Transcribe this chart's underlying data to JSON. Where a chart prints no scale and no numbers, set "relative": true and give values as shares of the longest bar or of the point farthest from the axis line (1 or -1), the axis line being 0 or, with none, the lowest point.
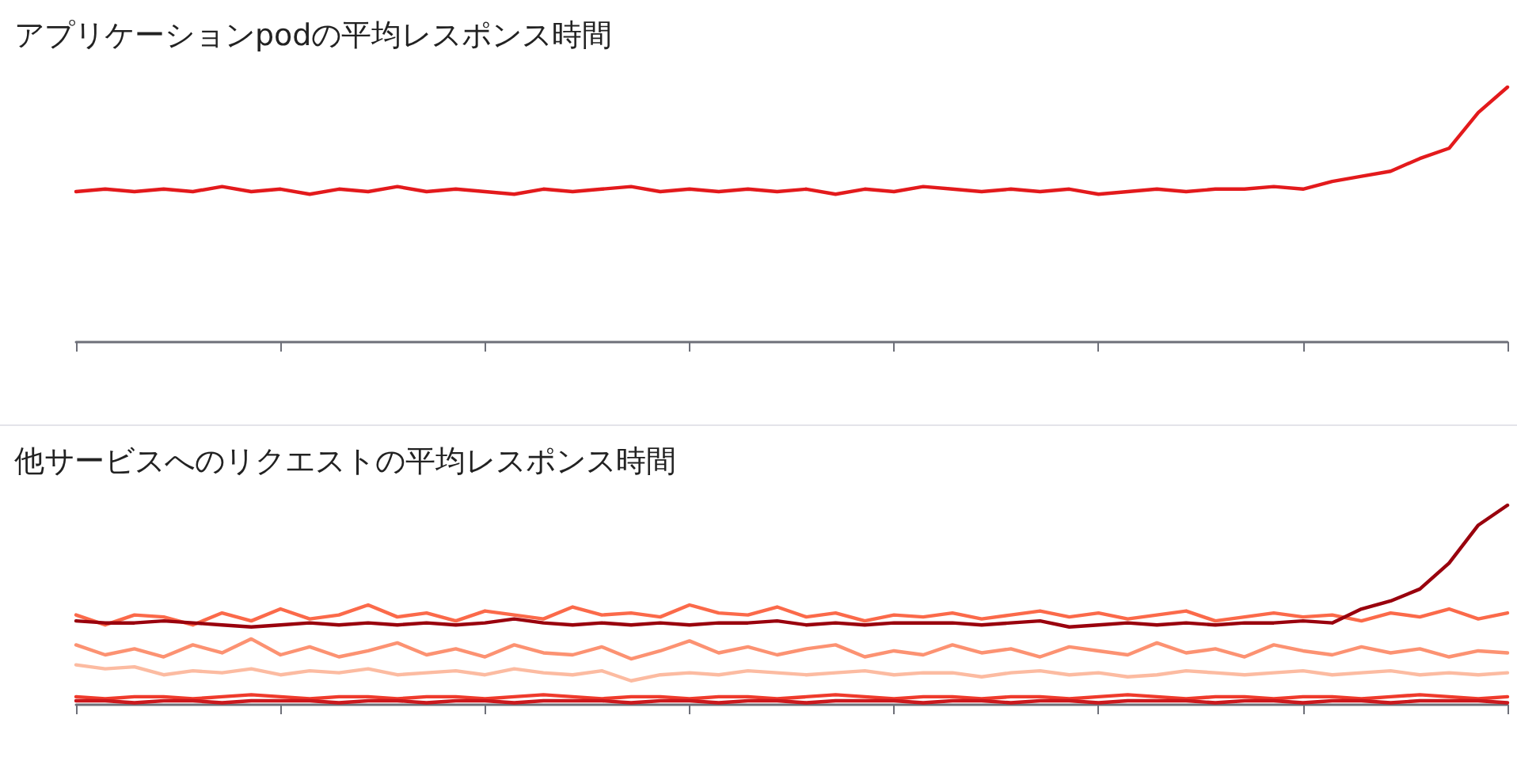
{
  "chart_data": [
    {
      "type": "line",
      "title": "アプリケーションpodの平均レスポンス時間",
      "relative": true,
      "marker": "none",
      "line_style": "solid",
      "categories": [
        null,
        null,
        null,
        null,
        null,
        null,
        null,
        null,
        null,
        null,
        null,
        null,
        null,
        null,
        null,
        null,
        null,
        null,
        null,
        null,
        null,
        null,
        null,
        null,
        null,
        null,
        null,
        null,
        null,
        null,
        null,
        null,
        null,
        null,
        null,
        null,
        null,
        null,
        null,
        null,
        null,
        null,
        null,
        null,
        null,
        null,
        null,
        null,
        null,
        null
      ],
      "series": [
        {
          "color": "#e31a1c",
          "values": [
            0.59,
            0.6,
            0.59,
            0.6,
            0.59,
            0.61,
            0.59,
            0.6,
            0.58,
            0.6,
            0.59,
            0.61,
            0.59,
            0.6,
            0.59,
            0.58,
            0.6,
            0.59,
            0.6,
            0.61,
            0.59,
            0.6,
            0.59,
            0.6,
            0.59,
            0.6,
            0.58,
            0.6,
            0.59,
            0.61,
            0.6,
            0.59,
            0.6,
            0.59,
            0.6,
            0.58,
            0.59,
            0.6,
            0.59,
            0.6,
            0.6,
            0.61,
            0.6,
            0.63,
            0.65,
            0.67,
            0.72,
            0.76,
            0.9,
            1
          ]
        }
      ]
    },
    {
      "type": "line",
      "title": "他サービスへのリクエストの平均レスポンス時間",
      "relative": true,
      "marker": "none",
      "line_style": "solid",
      "categories": [
        null,
        null,
        null,
        null,
        null,
        null,
        null,
        null,
        null,
        null,
        null,
        null,
        null,
        null,
        null,
        null,
        null,
        null,
        null,
        null,
        null,
        null,
        null,
        null,
        null,
        null,
        null,
        null,
        null,
        null,
        null,
        null,
        null,
        null,
        null,
        null,
        null,
        null,
        null,
        null,
        null,
        null,
        null,
        null,
        null,
        null,
        null,
        null,
        null,
        null
      ],
      "series": [
        {
          "color": "#fcbba1",
          "values": [
            0.2,
            0.18,
            0.19,
            0.15,
            0.17,
            0.16,
            0.18,
            0.15,
            0.17,
            0.16,
            0.18,
            0.15,
            0.16,
            0.17,
            0.15,
            0.18,
            0.16,
            0.15,
            0.17,
            0.12,
            0.15,
            0.16,
            0.15,
            0.17,
            0.16,
            0.15,
            0.16,
            0.17,
            0.15,
            0.16,
            0.16,
            0.14,
            0.16,
            0.17,
            0.15,
            0.16,
            0.14,
            0.15,
            0.17,
            0.16,
            0.15,
            0.16,
            0.17,
            0.15,
            0.16,
            0.17,
            0.15,
            0.16,
            0.15,
            0.16
          ]
        },
        {
          "color": "#fc9272",
          "values": [
            0.3,
            0.25,
            0.28,
            0.24,
            0.3,
            0.26,
            0.33,
            0.25,
            0.29,
            0.24,
            0.27,
            0.31,
            0.25,
            0.28,
            0.24,
            0.3,
            0.26,
            0.25,
            0.29,
            0.23,
            0.27,
            0.32,
            0.26,
            0.29,
            0.25,
            0.28,
            0.3,
            0.24,
            0.27,
            0.25,
            0.3,
            0.26,
            0.28,
            0.24,
            0.29,
            0.27,
            0.25,
            0.31,
            0.26,
            0.28,
            0.24,
            0.3,
            0.27,
            0.25,
            0.29,
            0.26,
            0.28,
            0.24,
            0.27,
            0.26
          ]
        },
        {
          "color": "#fb6a4a",
          "values": [
            0.45,
            0.4,
            0.45,
            0.44,
            0.4,
            0.46,
            0.42,
            0.48,
            0.43,
            0.45,
            0.5,
            0.44,
            0.46,
            0.42,
            0.47,
            0.45,
            0.43,
            0.49,
            0.45,
            0.46,
            0.44,
            0.5,
            0.46,
            0.45,
            0.49,
            0.44,
            0.46,
            0.42,
            0.45,
            0.44,
            0.46,
            0.43,
            0.45,
            0.47,
            0.44,
            0.46,
            0.43,
            0.45,
            0.47,
            0.42,
            0.44,
            0.46,
            0.44,
            0.45,
            0.42,
            0.46,
            0.44,
            0.48,
            0.43,
            0.46
          ]
        },
        {
          "color": "#ef3b2c",
          "values": [
            0.04,
            0.03,
            0.04,
            0.04,
            0.03,
            0.04,
            0.05,
            0.04,
            0.03,
            0.04,
            0.04,
            0.03,
            0.04,
            0.04,
            0.03,
            0.04,
            0.05,
            0.04,
            0.03,
            0.04,
            0.04,
            0.03,
            0.04,
            0.04,
            0.03,
            0.04,
            0.05,
            0.04,
            0.03,
            0.04,
            0.04,
            0.03,
            0.04,
            0.04,
            0.03,
            0.04,
            0.05,
            0.04,
            0.03,
            0.04,
            0.04,
            0.03,
            0.04,
            0.04,
            0.03,
            0.04,
            0.05,
            0.04,
            0.03,
            0.04
          ]
        },
        {
          "color": "#cb181d",
          "values": [
            0.02,
            0.02,
            0.01,
            0.02,
            0.02,
            0.01,
            0.02,
            0.02,
            0.02,
            0.01,
            0.02,
            0.02,
            0.01,
            0.02,
            0.02,
            0.01,
            0.02,
            0.02,
            0.02,
            0.01,
            0.02,
            0.02,
            0.01,
            0.02,
            0.02,
            0.01,
            0.02,
            0.02,
            0.02,
            0.01,
            0.02,
            0.02,
            0.01,
            0.02,
            0.02,
            0.01,
            0.02,
            0.02,
            0.02,
            0.01,
            0.02,
            0.02,
            0.01,
            0.02,
            0.02,
            0.01,
            0.02,
            0.02,
            0.02,
            0.01
          ]
        },
        {
          "color": "#99000d",
          "values": [
            0.42,
            0.41,
            0.41,
            0.42,
            0.41,
            0.4,
            0.39,
            0.4,
            0.41,
            0.4,
            0.41,
            0.4,
            0.41,
            0.4,
            0.41,
            0.43,
            0.41,
            0.4,
            0.41,
            0.4,
            0.41,
            0.4,
            0.41,
            0.41,
            0.42,
            0.4,
            0.41,
            0.4,
            0.41,
            0.41,
            0.41,
            0.4,
            0.41,
            0.42,
            0.39,
            0.4,
            0.41,
            0.4,
            0.41,
            0.4,
            0.41,
            0.41,
            0.42,
            0.41,
            0.48,
            0.52,
            0.58,
            0.71,
            0.9,
            1
          ]
        }
      ]
    }
  ]
}
